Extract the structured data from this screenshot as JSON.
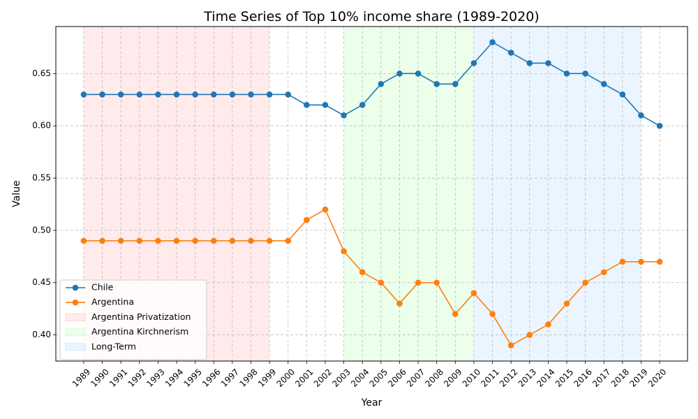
{
  "chart_data": {
    "type": "line",
    "title": "Time Series of Top 10% income share (1989-2020)",
    "xlabel": "Year",
    "ylabel": "Value",
    "x": [
      1989,
      1990,
      1991,
      1992,
      1993,
      1994,
      1995,
      1996,
      1997,
      1998,
      1999,
      2000,
      2001,
      2002,
      2003,
      2004,
      2005,
      2006,
      2007,
      2008,
      2009,
      2010,
      2011,
      2012,
      2013,
      2014,
      2015,
      2016,
      2017,
      2018,
      2019,
      2020
    ],
    "xlim": [
      1987.5,
      2021.5
    ],
    "ylim": [
      0.375,
      0.695
    ],
    "yticks": [
      0.4,
      0.45,
      0.5,
      0.55,
      0.6,
      0.65
    ],
    "ytick_labels": [
      "0.40",
      "0.45",
      "0.50",
      "0.55",
      "0.60",
      "0.65"
    ],
    "grid": true,
    "legend_position": "lower-left",
    "series": [
      {
        "name": "Chile",
        "color": "#1f77b4",
        "values": [
          0.63,
          0.63,
          0.63,
          0.63,
          0.63,
          0.63,
          0.63,
          0.63,
          0.63,
          0.63,
          0.63,
          0.63,
          0.62,
          0.62,
          0.61,
          0.62,
          0.64,
          0.65,
          0.65,
          0.64,
          0.64,
          0.66,
          0.68,
          0.67,
          0.66,
          0.66,
          0.65,
          0.65,
          0.64,
          0.63,
          0.61,
          0.6
        ]
      },
      {
        "name": "Argentina",
        "color": "#ff7f0e",
        "values": [
          0.49,
          0.49,
          0.49,
          0.49,
          0.49,
          0.49,
          0.49,
          0.49,
          0.49,
          0.49,
          0.49,
          0.49,
          0.51,
          0.52,
          0.48,
          0.46,
          0.45,
          0.43,
          0.45,
          0.45,
          0.42,
          0.44,
          0.42,
          0.39,
          0.4,
          0.41,
          0.43,
          0.45,
          0.46,
          0.47,
          0.47,
          0.47
        ]
      }
    ],
    "shaded_periods": [
      {
        "name": "Argentina Privatization",
        "start": 1989,
        "end": 1999,
        "color": "#ff9999"
      },
      {
        "name": "Argentina Kirchnerism",
        "start": 2003,
        "end": 2010,
        "color": "#99ff99"
      },
      {
        "name": "Long-Term",
        "start": 2010,
        "end": 2019,
        "color": "#99ccff"
      }
    ]
  }
}
